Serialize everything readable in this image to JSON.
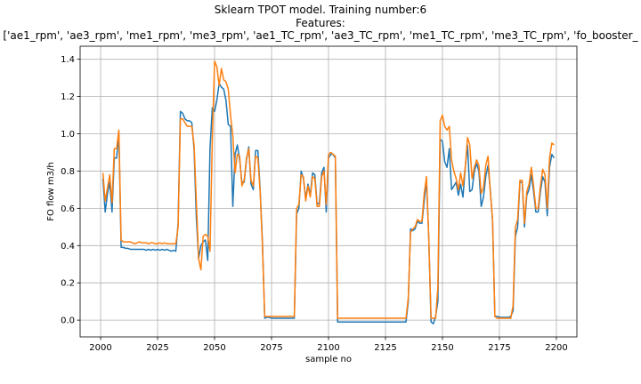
{
  "chart_data": {
    "type": "line",
    "title": "Sklearn TPOT model. Training number:6",
    "subtitle": "Features:",
    "features_line": "['ae1_rpm', 'ae3_rpm', 'me1_rpm', 'me3_rpm', 'ae1_TC_rpm', 'ae3_TC_rpm', 'me1_TC_rpm', 'me3_TC_rpm', 'fo_booster_",
    "xlabel": "sample no",
    "ylabel": "FO flow m3/h",
    "xlim": [
      1991,
      2209
    ],
    "ylim": [
      -0.09,
      1.47
    ],
    "grid": true,
    "x_ticks": [
      2000,
      2025,
      2050,
      2075,
      2100,
      2125,
      2150,
      2175,
      2200
    ],
    "y_ticks": [
      0.0,
      0.2,
      0.4,
      0.6,
      0.8,
      1.0,
      1.2,
      1.4
    ],
    "x_start": 2001,
    "series": [
      {
        "color": "#1f77b4",
        "values": [
          0.76,
          0.58,
          0.68,
          0.74,
          0.58,
          0.87,
          0.87,
          1.0,
          0.39,
          0.39,
          0.385,
          0.385,
          0.38,
          0.38,
          0.38,
          0.38,
          0.38,
          0.38,
          0.38,
          0.375,
          0.38,
          0.375,
          0.38,
          0.375,
          0.38,
          0.375,
          0.38,
          0.375,
          0.38,
          0.375,
          0.37,
          0.375,
          0.37,
          0.52,
          1.12,
          1.11,
          1.08,
          1.07,
          1.07,
          1.06,
          0.92,
          0.55,
          0.33,
          0.4,
          0.42,
          0.43,
          0.32,
          0.92,
          1.14,
          1.12,
          1.18,
          1.27,
          1.25,
          1.24,
          1.18,
          1.05,
          1.04,
          0.61,
          0.89,
          0.94,
          0.86,
          0.74,
          0.74,
          0.86,
          0.93,
          0.73,
          0.7,
          0.91,
          0.91,
          0.7,
          0.42,
          0.01,
          0.015,
          0.015,
          0.01,
          0.01,
          0.01,
          0.01,
          0.01,
          0.01,
          0.01,
          0.01,
          0.01,
          0.01,
          0.01,
          0.57,
          0.6,
          0.8,
          0.76,
          0.65,
          0.73,
          0.67,
          0.79,
          0.78,
          0.62,
          0.63,
          0.79,
          0.82,
          0.58,
          0.87,
          0.89,
          0.89,
          0.87,
          -0.01,
          -0.01,
          -0.01,
          -0.01,
          -0.01,
          -0.01,
          -0.01,
          -0.01,
          -0.01,
          -0.01,
          -0.01,
          -0.01,
          -0.01,
          -0.01,
          -0.01,
          -0.01,
          -0.01,
          -0.01,
          -0.01,
          -0.01,
          -0.01,
          -0.01,
          -0.01,
          -0.01,
          -0.01,
          -0.01,
          -0.01,
          -0.01,
          -0.01,
          -0.01,
          -0.01,
          0.1,
          0.49,
          0.48,
          0.49,
          0.53,
          0.52,
          0.52,
          0.64,
          0.75,
          0.44,
          -0.01,
          -0.02,
          0.02,
          0.1,
          0.97,
          0.96,
          0.85,
          0.82,
          0.92,
          0.7,
          0.72,
          0.74,
          0.67,
          0.73,
          0.66,
          0.82,
          0.94,
          0.69,
          0.7,
          0.8,
          0.84,
          0.8,
          0.61,
          0.66,
          0.77,
          0.83,
          0.7,
          0.53,
          0.02,
          0.02,
          0.015,
          0.015,
          0.015,
          0.015,
          0.015,
          0.02,
          0.05,
          0.45,
          0.5,
          0.74,
          0.74,
          0.5,
          0.67,
          0.7,
          0.78,
          0.69,
          0.58,
          0.58,
          0.69,
          0.77,
          0.74,
          0.56,
          0.82,
          0.89,
          0.87
        ]
      },
      {
        "color": "#ff7f0e",
        "values": [
          0.79,
          0.64,
          0.71,
          0.78,
          0.63,
          0.92,
          0.92,
          1.02,
          0.43,
          0.42,
          0.42,
          0.42,
          0.42,
          0.415,
          0.41,
          0.415,
          0.42,
          0.415,
          0.415,
          0.415,
          0.41,
          0.415,
          0.415,
          0.41,
          0.41,
          0.415,
          0.41,
          0.415,
          0.41,
          0.41,
          0.41,
          0.41,
          0.41,
          0.5,
          1.08,
          1.08,
          1.06,
          1.04,
          1.04,
          1.04,
          0.94,
          0.64,
          0.33,
          0.27,
          0.45,
          0.46,
          0.45,
          0.37,
          0.97,
          1.39,
          1.36,
          1.26,
          1.35,
          1.29,
          1.28,
          1.24,
          1.1,
          0.99,
          0.79,
          0.89,
          0.88,
          0.72,
          0.75,
          0.87,
          0.92,
          0.75,
          0.72,
          0.88,
          0.87,
          0.69,
          0.4,
          0.02,
          0.02,
          0.02,
          0.02,
          0.02,
          0.02,
          0.02,
          0.02,
          0.02,
          0.02,
          0.02,
          0.02,
          0.02,
          0.02,
          0.6,
          0.62,
          0.78,
          0.77,
          0.64,
          0.72,
          0.66,
          0.77,
          0.76,
          0.61,
          0.61,
          0.77,
          0.8,
          0.62,
          0.89,
          0.9,
          0.89,
          0.88,
          0.01,
          0.01,
          0.01,
          0.01,
          0.01,
          0.01,
          0.01,
          0.01,
          0.01,
          0.01,
          0.01,
          0.01,
          0.01,
          0.01,
          0.01,
          0.01,
          0.01,
          0.01,
          0.01,
          0.01,
          0.01,
          0.01,
          0.01,
          0.01,
          0.01,
          0.01,
          0.01,
          0.01,
          0.01,
          0.01,
          0.01,
          0.12,
          0.47,
          0.49,
          0.5,
          0.54,
          0.53,
          0.53,
          0.68,
          0.77,
          0.44,
          0.01,
          0.01,
          0.01,
          0.18,
          1.07,
          1.1,
          1.04,
          1.02,
          1.04,
          0.86,
          0.8,
          0.76,
          0.7,
          0.79,
          0.72,
          0.82,
          0.98,
          0.94,
          0.76,
          0.82,
          0.86,
          0.83,
          0.68,
          0.71,
          0.83,
          0.88,
          0.69,
          0.54,
          0.02,
          0.01,
          0.01,
          0.01,
          0.01,
          0.01,
          0.01,
          0.01,
          0.08,
          0.5,
          0.54,
          0.75,
          0.75,
          0.52,
          0.69,
          0.73,
          0.82,
          0.72,
          0.6,
          0.6,
          0.72,
          0.81,
          0.78,
          0.6,
          0.87,
          0.95,
          0.94
        ]
      }
    ]
  }
}
